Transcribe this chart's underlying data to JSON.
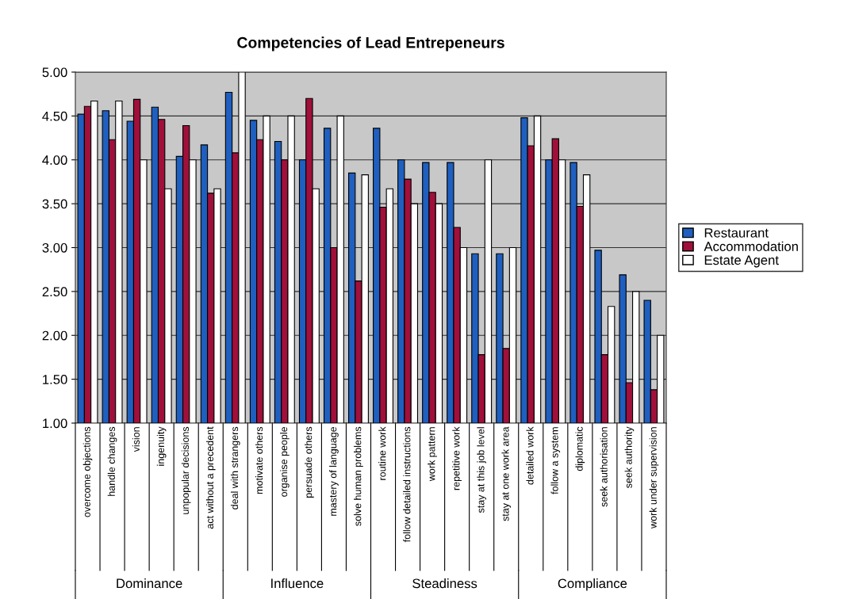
{
  "chart_data": {
    "type": "bar",
    "title": "Competencies of Lead Entrepeneurs",
    "categories": [
      "overcome objections",
      "handle changes",
      "vision",
      "ingenuity",
      "unpopular decisions",
      "act without a precedent",
      "deal with strangers",
      "motivate others",
      "organise people",
      "persuade others",
      "mastery of language",
      "solve human problems",
      "routine work",
      "follow detailed instructions",
      "work pattern",
      "repetitive work",
      "stay at this job level",
      "stay at one work area",
      "detailed work",
      "follow a system",
      "diplomatic",
      "seek authorisation",
      "seek authority",
      "work under supervision"
    ],
    "series": [
      {
        "name": "Restaurant",
        "color": "#1f5fbf",
        "values": [
          4.52,
          4.56,
          4.44,
          4.6,
          4.04,
          4.17,
          4.77,
          4.45,
          4.21,
          4.0,
          4.36,
          3.85,
          4.36,
          4.0,
          3.97,
          3.97,
          2.93,
          2.93,
          4.48,
          4.0,
          3.97,
          2.97,
          2.69,
          2.4
        ]
      },
      {
        "name": "Accommodation",
        "color": "#a0103a",
        "values": [
          4.61,
          4.23,
          4.69,
          4.46,
          4.39,
          3.62,
          4.08,
          4.23,
          4.0,
          4.7,
          3.0,
          2.62,
          3.46,
          3.78,
          3.63,
          3.23,
          1.78,
          1.85,
          4.16,
          4.24,
          3.47,
          1.78,
          1.46,
          1.38
        ]
      },
      {
        "name": "Estate Agent",
        "color": "#ffffff",
        "values": [
          4.67,
          4.67,
          4.0,
          3.67,
          4.0,
          3.67,
          5.0,
          4.5,
          4.5,
          3.67,
          4.5,
          3.83,
          3.67,
          3.5,
          3.5,
          3.0,
          4.0,
          3.0,
          4.5,
          4.0,
          3.83,
          2.33,
          2.5,
          2.0
        ]
      }
    ],
    "ylim": [
      1.0,
      5.0
    ],
    "yticks": [
      {
        "value": 1.0,
        "label": "1.00"
      },
      {
        "value": 1.5,
        "label": "1.50"
      },
      {
        "value": 2.0,
        "label": "2.00"
      },
      {
        "value": 2.5,
        "label": "2.50"
      },
      {
        "value": 3.0,
        "label": "3.00"
      },
      {
        "value": 3.5,
        "label": "3.50"
      },
      {
        "value": 4.0,
        "label": "4.00"
      },
      {
        "value": 4.5,
        "label": "4.50"
      },
      {
        "value": 5.0,
        "label": "5.00"
      }
    ],
    "annotations": [
      "Dominance",
      "Influence",
      "Steadiness",
      "Compliance"
    ],
    "grid": "y",
    "legend": "right"
  }
}
